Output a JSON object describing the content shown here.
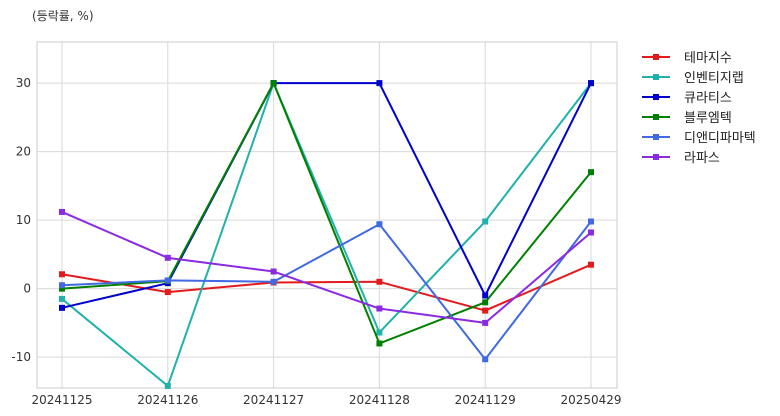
{
  "chart_data": {
    "type": "line",
    "unit_label": "(등락률, %)",
    "categories": [
      "20241125",
      "20241126",
      "20241127",
      "20241128",
      "20241129",
      "20250429"
    ],
    "ylim": [
      -14.5,
      36
    ],
    "yticks": [
      -10,
      0,
      10,
      20,
      30
    ],
    "grid": true,
    "legend_position": "right",
    "series": [
      {
        "name": "테마지수",
        "color": "#e31a1c",
        "values": [
          2.1,
          -0.5,
          0.9,
          1.0,
          -3.2,
          3.5
        ]
      },
      {
        "name": "인벤티지랩",
        "color": "#20b2aa",
        "values": [
          -1.5,
          -14.2,
          30.0,
          -6.4,
          9.8,
          30.0
        ]
      },
      {
        "name": "큐라티스",
        "color": "#0000cd",
        "values": [
          -2.8,
          0.8,
          30.0,
          30.0,
          -1.0,
          30.0
        ]
      },
      {
        "name": "블루엠텍",
        "color": "#008000",
        "values": [
          0.0,
          1.1,
          30.0,
          -8.0,
          -2.0,
          17.0
        ]
      },
      {
        "name": "디앤디파마텍",
        "color": "#4169e1",
        "values": [
          0.5,
          1.2,
          1.0,
          9.4,
          -10.3,
          9.8
        ]
      },
      {
        "name": "라파스",
        "color": "#8a2be2",
        "values": [
          11.2,
          4.5,
          2.5,
          -2.9,
          -5.0,
          8.2
        ]
      }
    ]
  }
}
